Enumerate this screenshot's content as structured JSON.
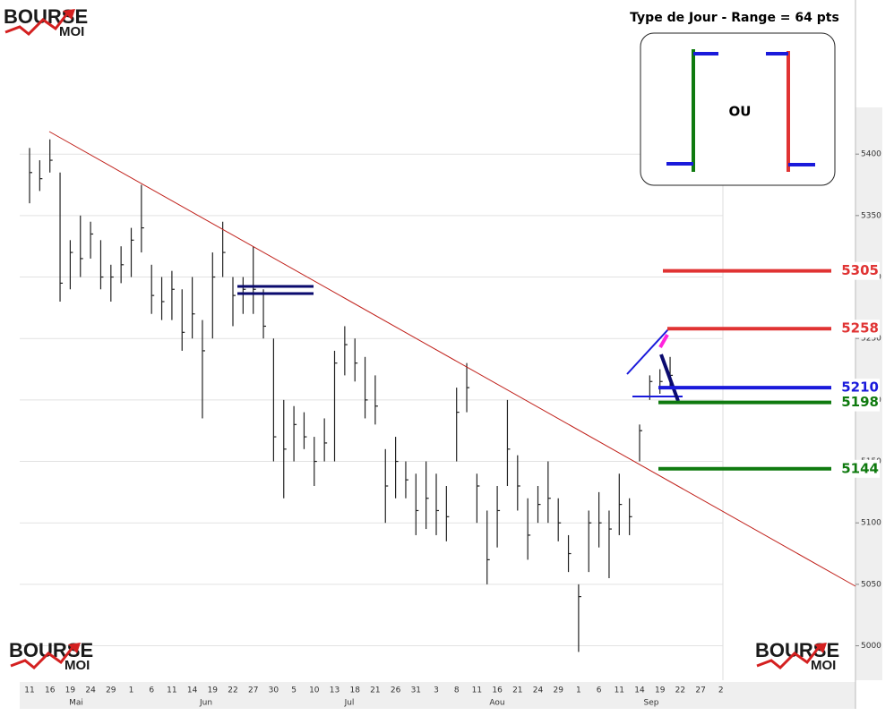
{
  "chart_data": {
    "type": "ohlc",
    "logo": {
      "top": "BOURSE",
      "bottom": "MOI"
    },
    "inset": {
      "title": "Type de Jour - Range = 64 pts",
      "text": "OU"
    },
    "categories": [
      "11",
      null,
      "16",
      null,
      "19",
      null,
      "24",
      null,
      "29",
      null,
      "1",
      null,
      "6",
      null,
      "11",
      null,
      "14",
      null,
      "19",
      null,
      "22",
      null,
      "27",
      null,
      "30",
      null,
      "5",
      null,
      "10",
      null,
      "13",
      null,
      "18",
      null,
      "21",
      null,
      "26",
      null,
      "31",
      null,
      "3",
      null,
      "8",
      null,
      "11",
      null,
      "16",
      null,
      "21",
      null,
      "24",
      null,
      "29",
      null,
      "1",
      null,
      "6",
      null,
      "11",
      null,
      "14",
      null,
      "19",
      null,
      "22",
      null,
      "27",
      null,
      "2",
      null
    ],
    "months": [
      "Mai",
      "Jun",
      "Jul",
      "Aou",
      "Sep"
    ],
    "high": [
      5405,
      5395,
      5412,
      5385,
      5330,
      5350,
      5345,
      5330,
      5310,
      5325,
      5340,
      5375,
      5310,
      5300,
      5305,
      5290,
      5300,
      5265,
      5320,
      5345,
      5300,
      5300,
      5325,
      5290,
      5250,
      5200,
      5195,
      5190,
      5170,
      5185,
      5240,
      5260,
      5250,
      5235,
      5220,
      5160,
      5170,
      5150,
      5140,
      5150,
      5140,
      5130,
      5210,
      5230,
      5140,
      5110,
      5130,
      5200,
      5155,
      5120,
      5130,
      5150,
      5120,
      5090,
      5050,
      5110,
      5125,
      5110,
      5140,
      5120,
      5180,
      5220,
      5225,
      5235,
      null,
      null,
      null,
      null,
      null,
      null
    ],
    "low": [
      5360,
      5370,
      5385,
      5280,
      5290,
      5300,
      5315,
      5290,
      5280,
      5295,
      5300,
      5320,
      5270,
      5265,
      5265,
      5240,
      5250,
      5185,
      5250,
      5300,
      5260,
      5270,
      5270,
      5250,
      5150,
      5120,
      5150,
      5160,
      5130,
      5150,
      5150,
      5220,
      5215,
      5185,
      5180,
      5100,
      5120,
      5120,
      5090,
      5095,
      5090,
      5085,
      5150,
      5190,
      5100,
      5050,
      5080,
      5130,
      5110,
      5070,
      5100,
      5100,
      5085,
      5060,
      4995,
      5060,
      5080,
      5055,
      5090,
      5090,
      5150,
      5200,
      5205,
      5210,
      null,
      null,
      null,
      null,
      null,
      null
    ],
    "close": [
      5385,
      5380,
      5395,
      5295,
      5320,
      5315,
      5335,
      5300,
      5300,
      5310,
      5330,
      5340,
      5285,
      5280,
      5290,
      5255,
      5270,
      5240,
      5300,
      5320,
      5285,
      5290,
      5290,
      5260,
      5170,
      5160,
      5180,
      5170,
      5150,
      5165,
      5230,
      5245,
      5230,
      5200,
      5195,
      5130,
      5150,
      5135,
      5110,
      5120,
      5110,
      5105,
      5190,
      5210,
      5130,
      5070,
      5110,
      5160,
      5130,
      5090,
      5115,
      5120,
      5100,
      5075,
      5040,
      5100,
      5100,
      5095,
      5115,
      5105,
      5175,
      5215,
      5215,
      5220,
      null,
      null,
      null,
      null,
      null,
      null
    ],
    "color": "#222222",
    "ylim": [
      4972,
      5438
    ],
    "yticks": [
      5000,
      5050,
      5100,
      5150,
      5200,
      5250,
      5300,
      5350,
      5400
    ],
    "grid": true,
    "levels": [
      {
        "value": 5305,
        "color": "#e03333"
      },
      {
        "value": 5258,
        "color": "#e03333"
      },
      {
        "value": 5210,
        "color": "#1a1adb"
      },
      {
        "value": 5198,
        "color": "#0f7a0f"
      },
      {
        "value": 5144,
        "color": "#0f7a0f"
      }
    ]
  }
}
